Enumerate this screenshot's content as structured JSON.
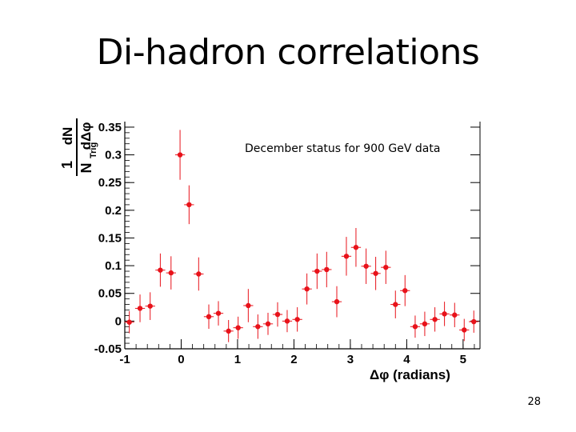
{
  "slide": {
    "title": "Di-hadron correlations",
    "page_number": "28"
  },
  "chart_data": {
    "type": "scatter",
    "title": "",
    "annotation": "December status for 900 GeV data",
    "xlabel": "Δφ (radians)",
    "ylabel": "1/N_Trig dN/dΔφ",
    "xlim": [
      -1,
      5.3
    ],
    "ylim": [
      -0.05,
      0.36
    ],
    "x_ticks": [
      "-1",
      "0",
      "1",
      "2",
      "3",
      "4",
      "5"
    ],
    "y_ticks": [
      "-0.05",
      "0",
      "0.05",
      "0.1",
      "0.15",
      "0.2",
      "0.25",
      "0.3",
      "0.35"
    ],
    "series": [
      {
        "name": "900 GeV data",
        "color": "#e8121a",
        "points": [
          {
            "x": -0.92,
            "y": -0.002,
            "err": 0.02
          },
          {
            "x": -0.73,
            "y": 0.023,
            "err": 0.025
          },
          {
            "x": -0.55,
            "y": 0.027,
            "err": 0.025
          },
          {
            "x": -0.37,
            "y": 0.092,
            "err": 0.03
          },
          {
            "x": -0.18,
            "y": 0.087,
            "err": 0.03
          },
          {
            "x": -0.02,
            "y": 0.3,
            "err": 0.045
          },
          {
            "x": 0.14,
            "y": 0.21,
            "err": 0.035
          },
          {
            "x": 0.31,
            "y": 0.085,
            "err": 0.03
          },
          {
            "x": 0.49,
            "y": 0.008,
            "err": 0.022
          },
          {
            "x": 0.66,
            "y": 0.014,
            "err": 0.022
          },
          {
            "x": 0.84,
            "y": -0.018,
            "err": 0.02
          },
          {
            "x": 1.01,
            "y": -0.012,
            "err": 0.02
          },
          {
            "x": 1.19,
            "y": 0.028,
            "err": 0.03
          },
          {
            "x": 1.36,
            "y": -0.01,
            "err": 0.022
          },
          {
            "x": 1.54,
            "y": -0.005,
            "err": 0.02
          },
          {
            "x": 1.71,
            "y": 0.012,
            "err": 0.022
          },
          {
            "x": 1.88,
            "y": 0.0,
            "err": 0.02
          },
          {
            "x": 2.06,
            "y": 0.003,
            "err": 0.022
          },
          {
            "x": 2.23,
            "y": 0.058,
            "err": 0.028
          },
          {
            "x": 2.41,
            "y": 0.09,
            "err": 0.032
          },
          {
            "x": 2.58,
            "y": 0.093,
            "err": 0.032
          },
          {
            "x": 2.76,
            "y": 0.035,
            "err": 0.028
          },
          {
            "x": 2.93,
            "y": 0.117,
            "err": 0.035
          },
          {
            "x": 3.1,
            "y": 0.133,
            "err": 0.035
          },
          {
            "x": 3.28,
            "y": 0.099,
            "err": 0.032
          },
          {
            "x": 3.45,
            "y": 0.086,
            "err": 0.03
          },
          {
            "x": 3.63,
            "y": 0.097,
            "err": 0.03
          },
          {
            "x": 3.8,
            "y": 0.03,
            "err": 0.025
          },
          {
            "x": 3.97,
            "y": 0.055,
            "err": 0.028
          },
          {
            "x": 4.15,
            "y": -0.01,
            "err": 0.02
          },
          {
            "x": 4.32,
            "y": -0.005,
            "err": 0.022
          },
          {
            "x": 4.5,
            "y": 0.003,
            "err": 0.022
          },
          {
            "x": 4.67,
            "y": 0.013,
            "err": 0.022
          },
          {
            "x": 4.85,
            "y": 0.011,
            "err": 0.022
          },
          {
            "x": 5.02,
            "y": -0.016,
            "err": 0.02
          },
          {
            "x": 5.19,
            "y": -0.001,
            "err": 0.02
          }
        ]
      }
    ]
  }
}
